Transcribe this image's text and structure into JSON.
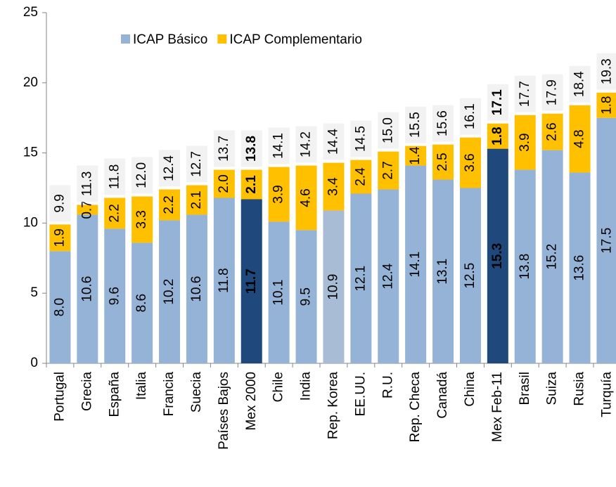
{
  "chart_data": {
    "type": "stacked-bar",
    "categories": [
      "Portugal",
      "Grecia",
      "España",
      "Italia",
      "Francia",
      "Suecia",
      "Países Bajos",
      "Mex 2000",
      "Chile",
      "India",
      "Rep. Korea",
      "EE.UU.",
      "R.U.",
      "Rep. Checa",
      "Canadá",
      "China",
      "Mex Feb-11",
      "Brasil",
      "Suiza",
      "Rusia",
      "Turquía"
    ],
    "series": [
      {
        "name": "ICAP Básico",
        "color": "#95b3d7",
        "values": [
          8.0,
          10.6,
          9.6,
          8.6,
          10.2,
          10.6,
          11.8,
          11.7,
          10.1,
          9.5,
          10.9,
          12.1,
          12.4,
          14.1,
          13.1,
          12.5,
          15.3,
          13.8,
          15.2,
          13.6,
          17.5
        ],
        "value_labels": [
          "8.0",
          "10.6",
          "9.6",
          "8.6",
          "10.2",
          "10.6",
          "11.8",
          "11.7",
          "10.1",
          "9.5",
          "10.9",
          "12.1",
          "12.4",
          "14.1",
          "13.1",
          "12.5",
          "15.3",
          "13.8",
          "15.2",
          "13.6",
          "17.5"
        ],
        "point_colors": [
          "#95b3d7",
          "#95b3d7",
          "#95b3d7",
          "#95b3d7",
          "#95b3d7",
          "#95b3d7",
          "#95b3d7",
          "#1f497d",
          "#95b3d7",
          "#95b3d7",
          "#a9bcd6",
          "#95b3d7",
          "#95b3d7",
          "#95b3d7",
          "#95b3d7",
          "#95b3d7",
          "#1f497d",
          "#95b3d7",
          "#95b3d7",
          "#95b3d7",
          "#95b3d7"
        ]
      },
      {
        "name": "ICAP Complementario",
        "color": "#ffc000",
        "values": [
          1.9,
          0.7,
          2.2,
          3.3,
          2.2,
          2.1,
          2.0,
          2.1,
          3.9,
          4.6,
          3.4,
          2.4,
          2.7,
          1.4,
          2.5,
          3.6,
          1.8,
          3.9,
          2.6,
          4.8,
          1.8
        ],
        "value_labels": [
          "1.9",
          "0.7",
          "2.2",
          "3.3",
          "2.2",
          "2.1",
          "2.0",
          "2.1",
          "3.9",
          "4.6",
          "3.4",
          "2.4",
          "2.7",
          "1.4",
          "2.5",
          "3.6",
          "1.8",
          "3.9",
          "2.6",
          "4.8",
          "1.8"
        ]
      }
    ],
    "total_labels": [
      "9.9",
      "11.3",
      "11.8",
      "12.0",
      "12.4",
      "12.7",
      "13.7",
      "13.8",
      "14.1",
      "14.2",
      "14.4",
      "14.5",
      "15.0",
      "15.5",
      "15.6",
      "16.1",
      "17.1",
      "17.7",
      "17.9",
      "18.4",
      "19.3"
    ],
    "highlight": [
      7,
      16
    ],
    "ylim": [
      0,
      25
    ],
    "yticks": [
      0,
      5,
      10,
      15,
      20,
      25
    ],
    "legend": "top-left"
  }
}
